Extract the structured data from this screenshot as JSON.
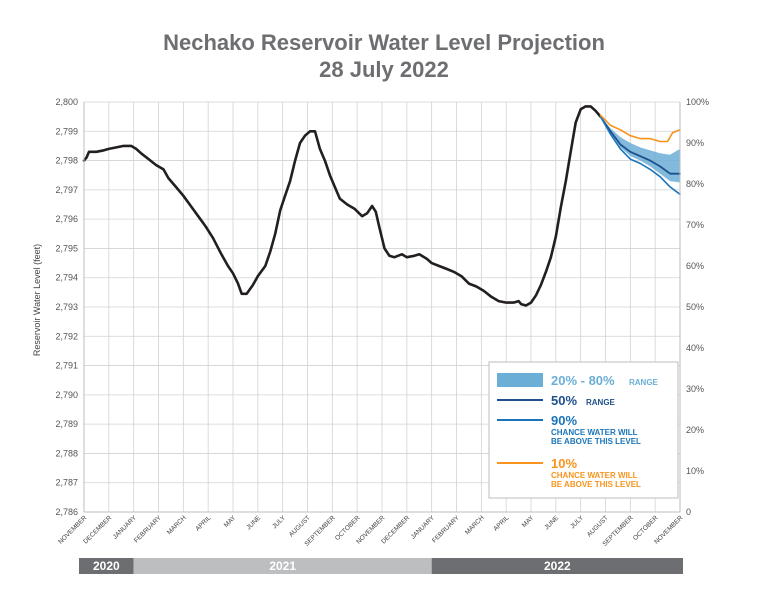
{
  "title_line1": "Nechako Reservoir Water Level Projection",
  "title_line2": "28 July 2022",
  "chart_data": {
    "type": "line",
    "ylabel": "Reservoir Water Level (feet)",
    "y_left": {
      "min": 2786,
      "max": 2800,
      "ticks": [
        "2,786",
        "2,787",
        "2,788",
        "2,789",
        "2,790",
        "2,791",
        "2,792",
        "2,793",
        "2,794",
        "2,795",
        "2,796",
        "2,797",
        "2,798",
        "2,799",
        "2,800"
      ]
    },
    "y_right": {
      "ticks": [
        "0",
        "10%",
        "20%",
        "30%",
        "40%",
        "50%",
        "60%",
        "70%",
        "80%",
        "90%",
        "100%"
      ]
    },
    "months": [
      "NOVEMBER",
      "DECEMBER",
      "JANUARY",
      "FEBRUARY",
      "MARCH",
      "APRIL",
      "MAY",
      "JUNE",
      "JULY",
      "AUGUST",
      "SEPTEMBER",
      "OCTOBER",
      "NOVEMBER",
      "DECEMBER",
      "JANUARY",
      "FEBRUARY",
      "MARCH",
      "APRIL",
      "MAY",
      "JUNE",
      "JULY",
      "AUGUST",
      "SEPTEMBER",
      "OCTOBER",
      "NOVEMBER"
    ],
    "years": [
      {
        "label": "2020",
        "start_month": 0,
        "end_month": 2,
        "color": "#6d6e71"
      },
      {
        "label": "2021",
        "start_month": 2,
        "end_month": 14,
        "color": "#bcbec0"
      },
      {
        "label": "2022",
        "start_month": 14,
        "end_month": 24,
        "color": "#6d6e71"
      }
    ],
    "series": [
      {
        "key": "observed",
        "color": "#231f20",
        "points": [
          [
            0,
            2798.0
          ],
          [
            0.1,
            2798.1
          ],
          [
            0.2,
            2798.3
          ],
          [
            0.5,
            2798.3
          ],
          [
            0.8,
            2798.35
          ],
          [
            1.0,
            2798.4
          ],
          [
            1.3,
            2798.45
          ],
          [
            1.6,
            2798.5
          ],
          [
            1.9,
            2798.5
          ],
          [
            2.1,
            2798.4
          ],
          [
            2.3,
            2798.25
          ],
          [
            2.6,
            2798.05
          ],
          [
            2.9,
            2797.85
          ],
          [
            3.2,
            2797.7
          ],
          [
            3.4,
            2797.4
          ],
          [
            3.7,
            2797.1
          ],
          [
            4.0,
            2796.8
          ],
          [
            4.3,
            2796.45
          ],
          [
            4.6,
            2796.1
          ],
          [
            4.9,
            2795.75
          ],
          [
            5.2,
            2795.35
          ],
          [
            5.5,
            2794.85
          ],
          [
            5.8,
            2794.4
          ],
          [
            6.0,
            2794.15
          ],
          [
            6.2,
            2793.8
          ],
          [
            6.35,
            2793.45
          ],
          [
            6.55,
            2793.45
          ],
          [
            6.8,
            2793.75
          ],
          [
            7.0,
            2794.05
          ],
          [
            7.3,
            2794.4
          ],
          [
            7.5,
            2794.9
          ],
          [
            7.7,
            2795.5
          ],
          [
            7.9,
            2796.3
          ],
          [
            8.1,
            2796.8
          ],
          [
            8.3,
            2797.3
          ],
          [
            8.5,
            2798.0
          ],
          [
            8.7,
            2798.6
          ],
          [
            8.9,
            2798.85
          ],
          [
            9.1,
            2799.0
          ],
          [
            9.3,
            2799.0
          ],
          [
            9.5,
            2798.4
          ],
          [
            9.7,
            2798.0
          ],
          [
            9.9,
            2797.5
          ],
          [
            10.1,
            2797.1
          ],
          [
            10.3,
            2796.7
          ],
          [
            10.6,
            2796.5
          ],
          [
            10.9,
            2796.35
          ],
          [
            11.2,
            2796.1
          ],
          [
            11.4,
            2796.2
          ],
          [
            11.6,
            2796.45
          ],
          [
            11.75,
            2796.25
          ],
          [
            11.9,
            2795.7
          ],
          [
            12.1,
            2795.0
          ],
          [
            12.3,
            2794.75
          ],
          [
            12.5,
            2794.7
          ],
          [
            12.8,
            2794.8
          ],
          [
            13.0,
            2794.7
          ],
          [
            13.3,
            2794.75
          ],
          [
            13.5,
            2794.8
          ],
          [
            13.8,
            2794.65
          ],
          [
            14.0,
            2794.5
          ],
          [
            14.3,
            2794.4
          ],
          [
            14.6,
            2794.3
          ],
          [
            14.9,
            2794.2
          ],
          [
            15.2,
            2794.05
          ],
          [
            15.5,
            2793.8
          ],
          [
            15.8,
            2793.7
          ],
          [
            16.1,
            2793.55
          ],
          [
            16.4,
            2793.35
          ],
          [
            16.7,
            2793.2
          ],
          [
            17.0,
            2793.15
          ],
          [
            17.3,
            2793.15
          ],
          [
            17.5,
            2793.2
          ],
          [
            17.6,
            2793.1
          ],
          [
            17.8,
            2793.05
          ],
          [
            18.0,
            2793.15
          ],
          [
            18.2,
            2793.4
          ],
          [
            18.4,
            2793.75
          ],
          [
            18.6,
            2794.2
          ],
          [
            18.8,
            2794.7
          ],
          [
            19.0,
            2795.4
          ],
          [
            19.2,
            2796.4
          ],
          [
            19.4,
            2797.3
          ],
          [
            19.6,
            2798.3
          ],
          [
            19.8,
            2799.3
          ],
          [
            20.0,
            2799.75
          ],
          [
            20.2,
            2799.85
          ],
          [
            20.4,
            2799.85
          ],
          [
            20.6,
            2799.7
          ],
          [
            20.8,
            2799.5
          ]
        ]
      },
      {
        "key": "p50",
        "color": "#1d4f8c",
        "points": [
          [
            20.8,
            2799.5
          ],
          [
            21.2,
            2799.0
          ],
          [
            21.6,
            2798.55
          ],
          [
            22.0,
            2798.3
          ],
          [
            22.4,
            2798.15
          ],
          [
            22.8,
            2798.0
          ],
          [
            23.2,
            2797.8
          ],
          [
            23.6,
            2797.55
          ],
          [
            24.0,
            2797.55
          ]
        ]
      },
      {
        "key": "p90",
        "color": "#1b75bb",
        "points": [
          [
            20.8,
            2799.5
          ],
          [
            21.2,
            2798.9
          ],
          [
            21.6,
            2798.4
          ],
          [
            22.0,
            2798.05
          ],
          [
            22.4,
            2797.9
          ],
          [
            22.8,
            2797.7
          ],
          [
            23.2,
            2797.45
          ],
          [
            23.6,
            2797.1
          ],
          [
            24.0,
            2796.85
          ]
        ]
      },
      {
        "key": "p10",
        "color": "#f7941d",
        "points": [
          [
            20.8,
            2799.55
          ],
          [
            21.2,
            2799.2
          ],
          [
            21.6,
            2799.05
          ],
          [
            22.0,
            2798.85
          ],
          [
            22.4,
            2798.75
          ],
          [
            22.8,
            2798.75
          ],
          [
            23.2,
            2798.65
          ],
          [
            23.5,
            2798.65
          ],
          [
            23.7,
            2798.95
          ],
          [
            24.0,
            2799.05
          ]
        ]
      }
    ],
    "band_20_80": {
      "color": "#6baed6",
      "x": [
        20.8,
        21.2,
        21.6,
        22.0,
        22.4,
        22.8,
        23.2,
        23.6,
        24.0
      ],
      "upper": [
        2799.5,
        2799.1,
        2798.8,
        2798.6,
        2798.45,
        2798.35,
        2798.25,
        2798.2,
        2798.4
      ],
      "lower": [
        2799.5,
        2798.95,
        2798.45,
        2798.15,
        2798.0,
        2797.8,
        2797.55,
        2797.3,
        2797.25
      ]
    },
    "legend": {
      "placement": "bottom-right",
      "items": [
        {
          "key": "band",
          "big": "20% - 80%",
          "small": "RANGE",
          "color": "#6baed6"
        },
        {
          "key": "p50",
          "big": "50%",
          "small": "RANGE",
          "color": "#1d4f8c"
        },
        {
          "key": "p90",
          "big": "90%",
          "small1": "CHANCE WATER WILL",
          "small2": "BE ABOVE THIS LEVEL",
          "color": "#1b75bb"
        },
        {
          "key": "p10",
          "big": "10%",
          "small1": "CHANCE WATER WILL",
          "small2": "BE ABOVE THIS LEVEL",
          "color": "#f7941d"
        }
      ]
    }
  }
}
